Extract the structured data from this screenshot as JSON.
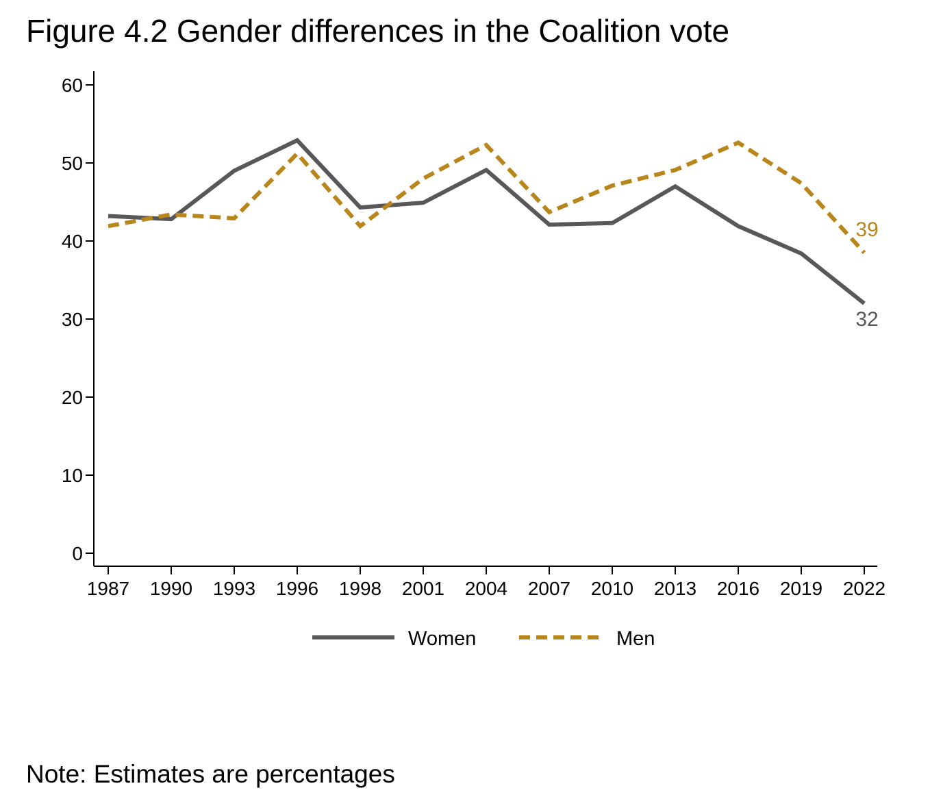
{
  "title": "Figure 4.2 Gender differences in the Coalition vote",
  "note": "Note: Estimates are percentages",
  "chart_data": {
    "type": "line",
    "x": [
      "1987",
      "1990",
      "1993",
      "1996",
      "1998",
      "2001",
      "2004",
      "2007",
      "2010",
      "2013",
      "2016",
      "2019",
      "2022"
    ],
    "ylim": [
      0,
      60
    ],
    "yticks": [
      0,
      10,
      20,
      30,
      40,
      50,
      60
    ],
    "xlabel": "",
    "ylabel": "",
    "grid": false,
    "legend": "bottom",
    "series": [
      {
        "name": "Women",
        "color": "#58585b",
        "style": "solid",
        "values": [
          43.2,
          42.8,
          49.0,
          52.9,
          44.3,
          44.9,
          49.1,
          42.1,
          42.3,
          47.0,
          41.9,
          38.4,
          32.0
        ],
        "end_label": "32"
      },
      {
        "name": "Men",
        "color": "#b9861b",
        "style": "dashed",
        "values": [
          41.9,
          43.4,
          42.9,
          51.2,
          41.9,
          48.0,
          52.3,
          43.7,
          47.1,
          49.1,
          52.6,
          47.4,
          38.5
        ],
        "end_label": "39"
      }
    ]
  }
}
